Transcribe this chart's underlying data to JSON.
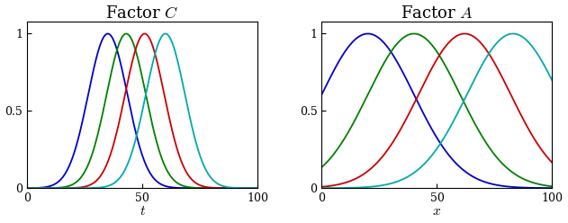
{
  "title_C": "Factor $C$",
  "title_A": "Factor $A$",
  "xlabel_C": "$t$",
  "xlabel_A": "$x$",
  "xlim": [
    0,
    100
  ],
  "ylim_C": [
    0,
    1.08
  ],
  "ylim_A": [
    0,
    1.08
  ],
  "yticks": [
    0,
    0.5,
    1
  ],
  "xticks": [
    0,
    50,
    100
  ],
  "colors": [
    "#0000cc",
    "#008000",
    "#cc0000",
    "#00aaaa"
  ],
  "C_means": [
    35,
    43,
    51,
    60
  ],
  "C_sigmas": [
    8.5,
    8.5,
    8.5,
    8.5
  ],
  "C_n": 500,
  "A_means": [
    20,
    40,
    62,
    83
  ],
  "A_sigmas": [
    20,
    20,
    20,
    20
  ],
  "A_n": 500,
  "background_color": "#ffffff",
  "title_fontsize": 13,
  "label_fontsize": 11,
  "tick_fontsize": 9,
  "linewidth": 1.3,
  "fig_width": 6.31,
  "fig_height": 2.48
}
